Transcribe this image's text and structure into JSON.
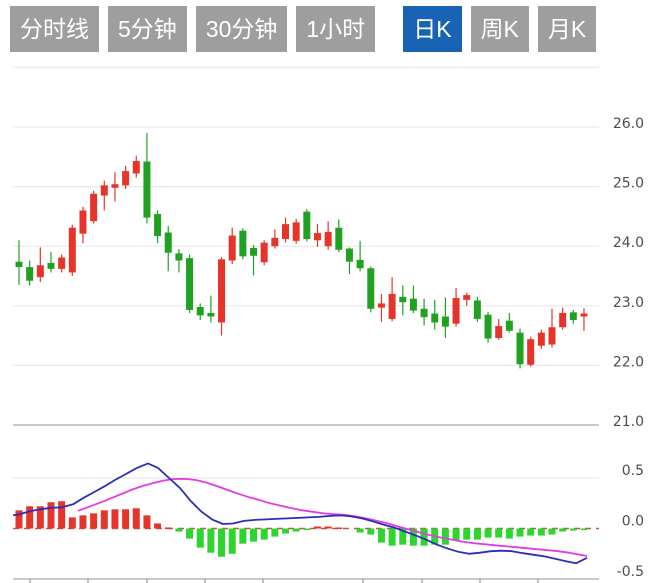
{
  "tabs": {
    "items": [
      {
        "label": "分时线",
        "active": false
      },
      {
        "label": "5分钟",
        "active": false
      },
      {
        "label": "30分钟",
        "active": false
      },
      {
        "label": "1小时",
        "active": false
      },
      {
        "label": "日K",
        "active": true
      },
      {
        "label": "周K",
        "active": false
      },
      {
        "label": "月K",
        "active": false
      }
    ],
    "active_bg": "#1863b3",
    "inactive_bg": "#9e9e9e",
    "text_color": "#ffffff"
  },
  "chart_data": {
    "type": "candlestick",
    "title": "",
    "convention": "red = up candle, green = down candle (Chinese market style)",
    "legend_position": "none",
    "grid": true,
    "price_pane": {
      "ylim": [
        21.0,
        27.0
      ],
      "yticks": [
        26.0,
        25.0,
        24.0,
        23.0,
        22.0,
        21.0
      ],
      "ytick_labels": [
        "26.0",
        "25.0",
        "24.0",
        "23.0",
        "22.0",
        "21.0"
      ],
      "candles_ohlc": [
        [
          23.74,
          24.1,
          23.35,
          23.65
        ],
        [
          23.65,
          23.76,
          23.34,
          23.42
        ],
        [
          23.48,
          23.98,
          23.4,
          23.68
        ],
        [
          23.72,
          23.9,
          23.56,
          23.62
        ],
        [
          23.62,
          23.86,
          23.56,
          23.81
        ],
        [
          23.56,
          24.36,
          23.5,
          24.31
        ],
        [
          24.21,
          24.66,
          24.05,
          24.6
        ],
        [
          24.42,
          24.93,
          24.38,
          24.88
        ],
        [
          24.85,
          25.1,
          24.6,
          25.02
        ],
        [
          24.98,
          25.24,
          24.75,
          25.04
        ],
        [
          25.02,
          25.35,
          24.96,
          25.26
        ],
        [
          25.22,
          25.52,
          25.15,
          25.43
        ],
        [
          25.42,
          25.9,
          24.38,
          24.48
        ],
        [
          24.54,
          24.6,
          24.05,
          24.17
        ],
        [
          24.23,
          24.34,
          23.58,
          23.89
        ],
        [
          23.88,
          23.95,
          23.56,
          23.76
        ],
        [
          23.8,
          23.86,
          22.88,
          22.93
        ],
        [
          22.98,
          23.04,
          22.76,
          22.84
        ],
        [
          22.88,
          23.17,
          22.72,
          22.82
        ],
        [
          22.72,
          23.82,
          22.5,
          23.78
        ],
        [
          23.76,
          24.31,
          23.7,
          24.18
        ],
        [
          24.26,
          24.3,
          23.78,
          23.83
        ],
        [
          23.97,
          24.02,
          23.51,
          23.84
        ],
        [
          23.73,
          24.1,
          23.68,
          24.06
        ],
        [
          24.0,
          24.28,
          23.96,
          24.14
        ],
        [
          24.12,
          24.48,
          24.06,
          24.37
        ],
        [
          24.09,
          24.46,
          24.04,
          24.4
        ],
        [
          24.58,
          24.62,
          24.08,
          24.12
        ],
        [
          24.1,
          24.37,
          23.99,
          24.22
        ],
        [
          24.0,
          24.42,
          23.94,
          24.24
        ],
        [
          24.31,
          24.45,
          23.9,
          23.94
        ],
        [
          23.96,
          23.98,
          23.53,
          23.74
        ],
        [
          23.77,
          24.09,
          23.58,
          23.63
        ],
        [
          23.63,
          23.66,
          22.89,
          22.95
        ],
        [
          22.97,
          23.2,
          22.73,
          23.04
        ],
        [
          22.78,
          23.48,
          22.74,
          23.2
        ],
        [
          23.15,
          23.34,
          22.84,
          23.06
        ],
        [
          23.12,
          23.34,
          22.88,
          22.92
        ],
        [
          22.95,
          23.12,
          22.67,
          22.81
        ],
        [
          22.87,
          23.1,
          22.6,
          22.72
        ],
        [
          22.82,
          23.14,
          22.46,
          22.65
        ],
        [
          22.7,
          23.3,
          22.65,
          23.13
        ],
        [
          23.1,
          23.22,
          23.0,
          23.18
        ],
        [
          23.09,
          23.15,
          22.73,
          22.78
        ],
        [
          22.85,
          22.9,
          22.38,
          22.45
        ],
        [
          22.46,
          22.78,
          22.43,
          22.66
        ],
        [
          22.75,
          22.88,
          22.55,
          22.58
        ],
        [
          22.55,
          22.62,
          21.95,
          22.02
        ],
        [
          22.01,
          22.48,
          21.98,
          22.44
        ],
        [
          22.33,
          22.6,
          22.28,
          22.55
        ],
        [
          22.35,
          22.95,
          22.3,
          22.64
        ],
        [
          22.64,
          22.97,
          22.6,
          22.88
        ],
        [
          22.89,
          22.93,
          22.7,
          22.76
        ],
        [
          22.82,
          22.96,
          22.58,
          22.87
        ]
      ]
    },
    "macd_pane": {
      "ylim": [
        -0.54,
        0.66
      ],
      "yticks": [
        0.5,
        0.0,
        -0.5
      ],
      "ytick_labels": [
        "0.5",
        "0.0",
        "-0.5"
      ],
      "zero_line_style": "dashed-red",
      "histogram": [
        0.18,
        0.22,
        0.22,
        0.26,
        0.27,
        0.11,
        0.13,
        0.15,
        0.18,
        0.19,
        0.19,
        0.2,
        0.13,
        0.05,
        0.01,
        -0.03,
        -0.1,
        -0.19,
        -0.24,
        -0.28,
        -0.25,
        -0.15,
        -0.13,
        -0.11,
        -0.08,
        -0.05,
        -0.03,
        -0.01,
        0.02,
        0.02,
        0.01,
        0.0,
        -0.04,
        -0.06,
        -0.14,
        -0.17,
        -0.16,
        -0.17,
        -0.17,
        -0.16,
        -0.16,
        -0.12,
        -0.11,
        -0.11,
        -0.09,
        -0.09,
        -0.1,
        -0.08,
        -0.07,
        -0.07,
        -0.06,
        -0.03,
        -0.02,
        -0.01
      ],
      "dif_line": [
        [
          13,
          0.13
        ],
        [
          19,
          0.14
        ],
        [
          30,
          0.17
        ],
        [
          40,
          0.19
        ],
        [
          51,
          0.205
        ],
        [
          62,
          0.21
        ],
        [
          73,
          0.24
        ],
        [
          83,
          0.3
        ],
        [
          94,
          0.36
        ],
        [
          105,
          0.42
        ],
        [
          115,
          0.48
        ],
        [
          126,
          0.54
        ],
        [
          137,
          0.6
        ],
        [
          148,
          0.645
        ],
        [
          158,
          0.6
        ],
        [
          169,
          0.5
        ],
        [
          180,
          0.4
        ],
        [
          190,
          0.28
        ],
        [
          201,
          0.17
        ],
        [
          212,
          0.09
        ],
        [
          223,
          0.045
        ],
        [
          233,
          0.05
        ],
        [
          244,
          0.075
        ],
        [
          255,
          0.085
        ],
        [
          266,
          0.09
        ],
        [
          276,
          0.095
        ],
        [
          287,
          0.1
        ],
        [
          298,
          0.105
        ],
        [
          308,
          0.11
        ],
        [
          319,
          0.115
        ],
        [
          330,
          0.125
        ],
        [
          341,
          0.13
        ],
        [
          351,
          0.12
        ],
        [
          362,
          0.1
        ],
        [
          373,
          0.07
        ],
        [
          383,
          0.04
        ],
        [
          394,
          0.01
        ],
        [
          405,
          -0.03
        ],
        [
          416,
          -0.07
        ],
        [
          426,
          -0.11
        ],
        [
          437,
          -0.16
        ],
        [
          448,
          -0.2
        ],
        [
          458,
          -0.23
        ],
        [
          469,
          -0.25
        ],
        [
          480,
          -0.24
        ],
        [
          491,
          -0.225
        ],
        [
          501,
          -0.22
        ],
        [
          512,
          -0.225
        ],
        [
          523,
          -0.245
        ],
        [
          534,
          -0.26
        ],
        [
          544,
          -0.275
        ],
        [
          555,
          -0.3
        ],
        [
          566,
          -0.325
        ],
        [
          576,
          -0.345
        ],
        [
          587,
          -0.29
        ]
      ],
      "dea_line": [
        [
          78,
          0.175
        ],
        [
          89,
          0.215
        ],
        [
          100,
          0.255
        ],
        [
          110,
          0.295
        ],
        [
          121,
          0.34
        ],
        [
          132,
          0.385
        ],
        [
          142,
          0.42
        ],
        [
          153,
          0.45
        ],
        [
          164,
          0.475
        ],
        [
          174,
          0.49
        ],
        [
          185,
          0.492
        ],
        [
          196,
          0.48
        ],
        [
          206,
          0.455
        ],
        [
          217,
          0.42
        ],
        [
          228,
          0.38
        ],
        [
          238,
          0.345
        ],
        [
          249,
          0.31
        ],
        [
          260,
          0.28
        ],
        [
          270,
          0.25
        ],
        [
          281,
          0.225
        ],
        [
          292,
          0.2
        ],
        [
          302,
          0.18
        ],
        [
          313,
          0.165
        ],
        [
          324,
          0.15
        ],
        [
          334,
          0.142
        ],
        [
          345,
          0.135
        ],
        [
          356,
          0.12
        ],
        [
          366,
          0.1
        ],
        [
          377,
          0.075
        ],
        [
          388,
          0.05
        ],
        [
          398,
          0.02
        ],
        [
          409,
          -0.01
        ],
        [
          420,
          -0.04
        ],
        [
          430,
          -0.065
        ],
        [
          441,
          -0.09
        ],
        [
          452,
          -0.11
        ],
        [
          462,
          -0.13
        ],
        [
          473,
          -0.145
        ],
        [
          484,
          -0.155
        ],
        [
          494,
          -0.165
        ],
        [
          505,
          -0.175
        ],
        [
          516,
          -0.185
        ],
        [
          526,
          -0.195
        ],
        [
          537,
          -0.205
        ],
        [
          548,
          -0.215
        ],
        [
          558,
          -0.225
        ],
        [
          569,
          -0.24
        ],
        [
          580,
          -0.26
        ],
        [
          587,
          -0.272
        ]
      ]
    },
    "x_axis": {
      "tick_positions": [
        30,
        88,
        147,
        205,
        263,
        363,
        422,
        480,
        538
      ]
    },
    "colors": {
      "up": "#e5352b",
      "down": "#21a121",
      "hist_up": "#e5352b",
      "hist_down": "#2ed52e",
      "dif": "#2b2fb8",
      "dea": "#e23ce2",
      "zero_dash": "#c85050",
      "grid": "#e9e9e9",
      "axis_border": "#c9c9c9",
      "tick_label": "#4d4d4d"
    }
  }
}
